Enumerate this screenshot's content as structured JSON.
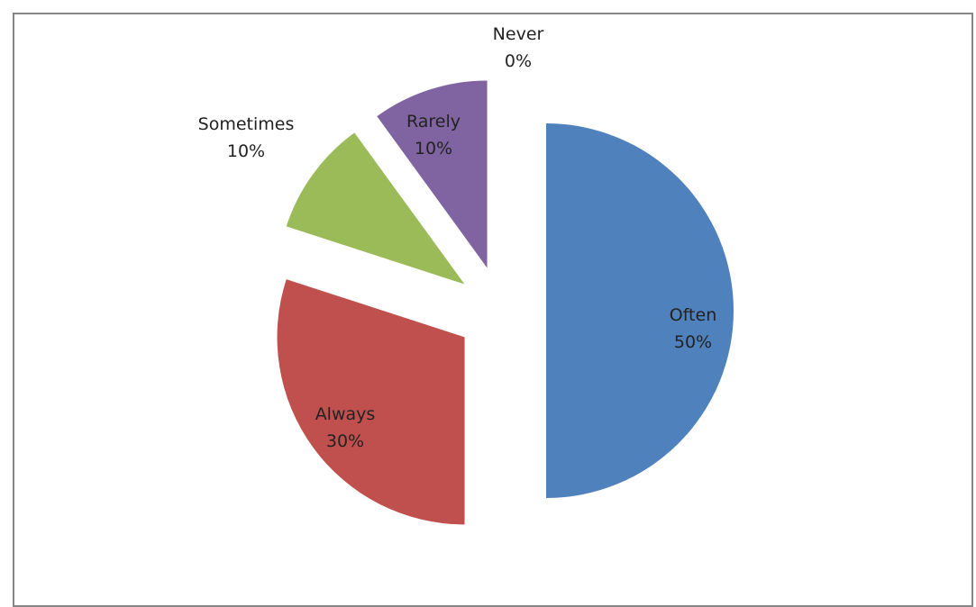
{
  "chart_data": {
    "type": "pie",
    "title": "",
    "exploded": true,
    "slices": [
      {
        "label": "Often",
        "value": 50,
        "percent_label": "50%",
        "color": "#4F81BD"
      },
      {
        "label": "Always",
        "value": 30,
        "percent_label": "30%",
        "color": "#C0504D"
      },
      {
        "label": "Sometimes",
        "value": 10,
        "percent_label": "10%",
        "color": "#9BBB59"
      },
      {
        "label": "Rarely",
        "value": 10,
        "percent_label": "10%",
        "color": "#8064A2"
      },
      {
        "label": "Never",
        "value": 0,
        "percent_label": "0%",
        "color": "#4BACC6"
      }
    ]
  }
}
